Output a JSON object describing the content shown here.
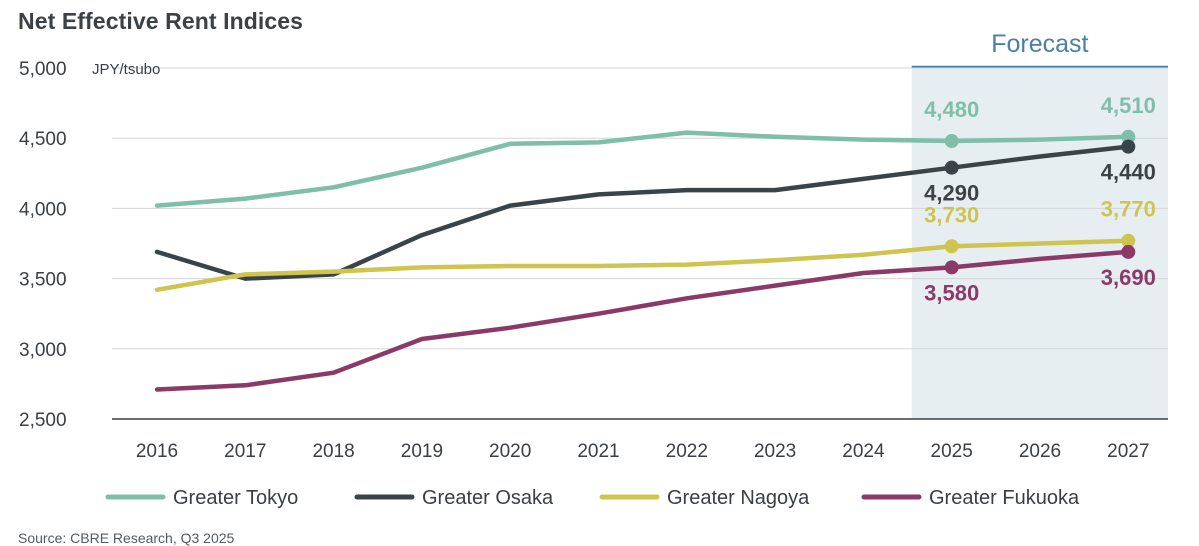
{
  "chart_data": {
    "type": "line",
    "title": "Net Effective Rent Indices",
    "ylabel": "JPY/tsubo",
    "xlabel": "",
    "categories": [
      "2016",
      "2017",
      "2018",
      "2019",
      "2020",
      "2021",
      "2022",
      "2023",
      "2024",
      "2025",
      "2026",
      "2027"
    ],
    "ylim": [
      2500,
      5000
    ],
    "yticks": [
      5000,
      4500,
      4000,
      3500,
      3000,
      2500
    ],
    "ytick_labels": [
      "5,000",
      "4,500",
      "4,000",
      "3,500",
      "3,000",
      "2,500"
    ],
    "forecast_label": "Forecast",
    "forecast_start": "2025",
    "series": [
      {
        "name": "Greater Tokyo",
        "color": "#7fbfa9",
        "values": [
          4020,
          4070,
          4150,
          4290,
          4460,
          4470,
          4540,
          4510,
          4490,
          4480,
          4490,
          4510
        ]
      },
      {
        "name": "Greater Osaka",
        "color": "#3a4347",
        "values": [
          3690,
          3500,
          3530,
          3810,
          4020,
          4100,
          4130,
          4130,
          4210,
          4290,
          4370,
          4440
        ]
      },
      {
        "name": "Greater Nagoya",
        "color": "#cfc44f",
        "values": [
          3420,
          3530,
          3550,
          3580,
          3590,
          3590,
          3600,
          3630,
          3670,
          3730,
          3750,
          3770
        ]
      },
      {
        "name": "Greater Fukuoka",
        "color": "#8b3a68",
        "values": [
          2710,
          2740,
          2830,
          3070,
          3150,
          3250,
          3360,
          3450,
          3540,
          3580,
          3640,
          3690
        ]
      }
    ],
    "data_labels": [
      {
        "series": "Greater Tokyo",
        "category": "2025",
        "text": "4,480",
        "pos": "above"
      },
      {
        "series": "Greater Tokyo",
        "category": "2027",
        "text": "4,510",
        "pos": "above"
      },
      {
        "series": "Greater Osaka",
        "category": "2025",
        "text": "4,290",
        "pos": "below"
      },
      {
        "series": "Greater Osaka",
        "category": "2027",
        "text": "4,440",
        "pos": "below"
      },
      {
        "series": "Greater Nagoya",
        "category": "2025",
        "text": "3,730",
        "pos": "above"
      },
      {
        "series": "Greater Nagoya",
        "category": "2027",
        "text": "3,770",
        "pos": "above"
      },
      {
        "series": "Greater Fukuoka",
        "category": "2025",
        "text": "3,580",
        "pos": "below"
      },
      {
        "series": "Greater Fukuoka",
        "category": "2027",
        "text": "3,690",
        "pos": "below"
      }
    ],
    "grid": true,
    "legend_position": "bottom"
  },
  "source": "Source: CBRE Research, Q3 2025"
}
